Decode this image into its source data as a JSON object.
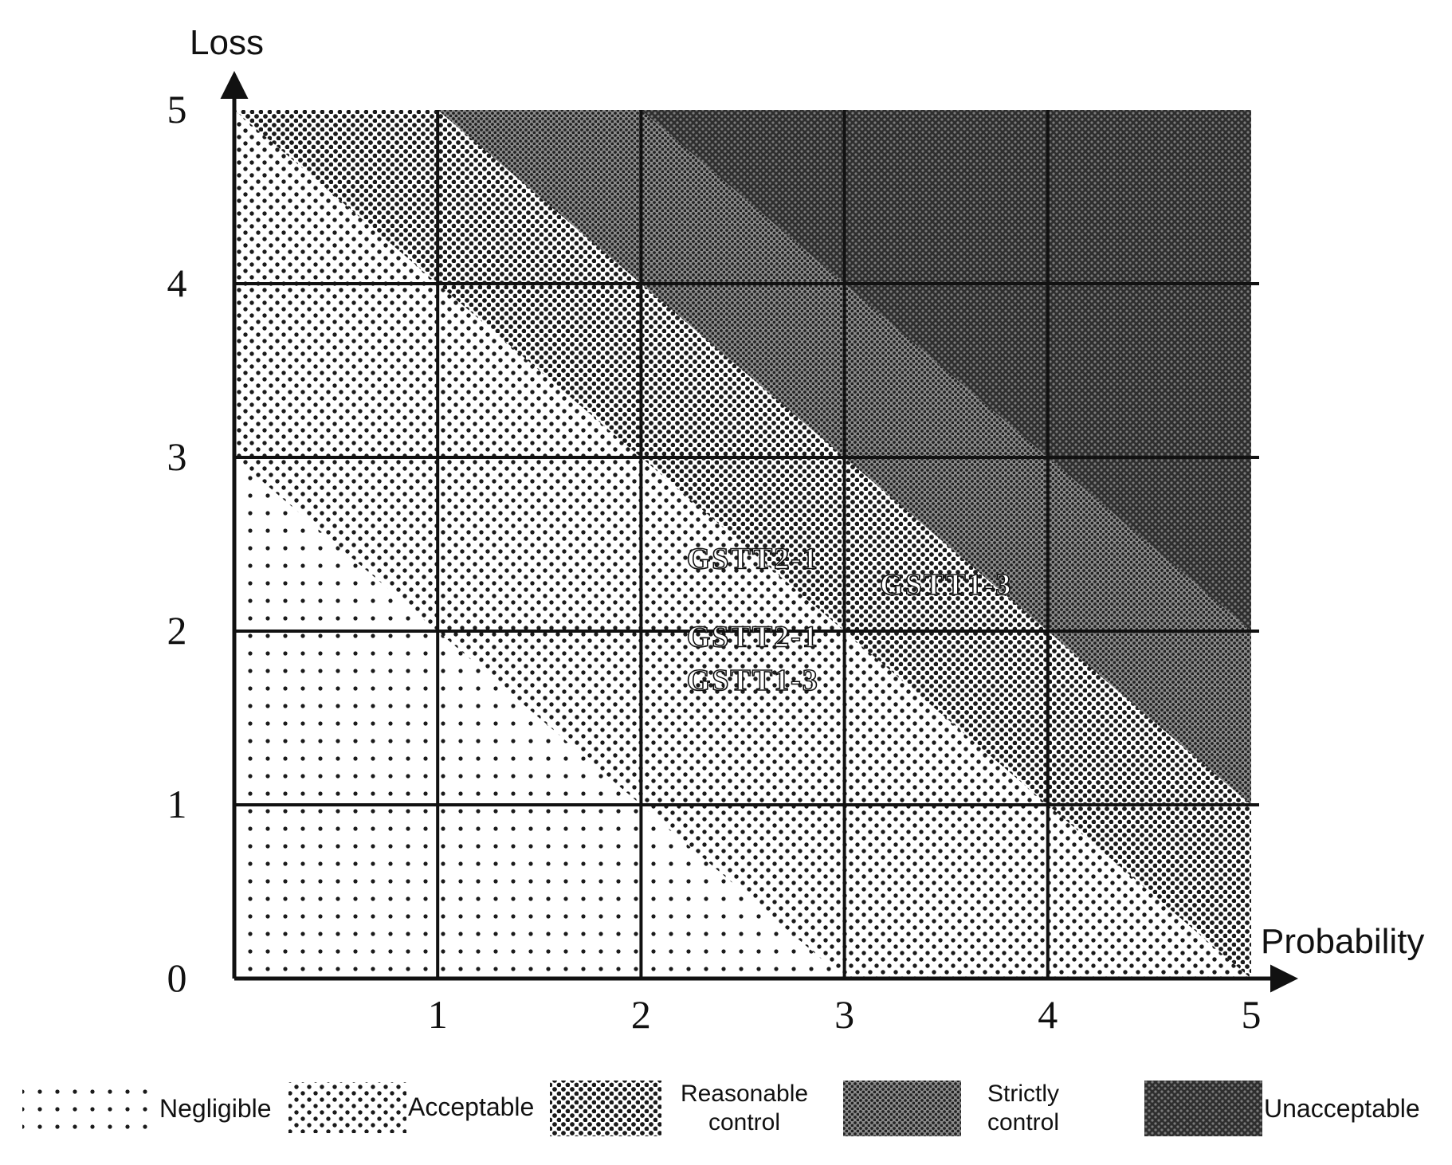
{
  "chart_data": {
    "type": "heatmap",
    "title": "",
    "xlabel": "Probability",
    "ylabel": "Loss",
    "xlim": [
      0,
      5
    ],
    "ylim": [
      0,
      5
    ],
    "x_ticks": [
      "1",
      "2",
      "3",
      "4",
      "5"
    ],
    "y_ticks": [
      "0",
      "1",
      "2",
      "3",
      "4",
      "5"
    ],
    "grid": true,
    "zones": [
      {
        "name": "Negligible",
        "label": "Negligible",
        "sum_min": 0,
        "sum_max": 3,
        "color": "#ffffff",
        "dot_color": "#1a1a1a",
        "density": "sparse"
      },
      {
        "name": "Acceptable",
        "label": "Acceptable",
        "sum_min": 3,
        "sum_max": 5,
        "color": "#ffffff",
        "dot_color": "#1a1a1a",
        "density": "medium"
      },
      {
        "name": "Reasonable control",
        "label_lines": [
          "Reasonable",
          "control"
        ],
        "sum_min": 5,
        "sum_max": 6,
        "color": "#ffffff",
        "dot_color": "#1a1a1a",
        "density": "dense"
      },
      {
        "name": "Strictly control",
        "label_lines": [
          "Strictly",
          "control"
        ],
        "sum_min": 6,
        "sum_max": 7,
        "color": "#8a8a8a",
        "dot_color": "#1a1a1a",
        "density": "very-dense"
      },
      {
        "name": "Unacceptable",
        "label": "Unacceptable",
        "sum_min": 7,
        "sum_max": 10,
        "color": "#3a3a3a",
        "dot_color": "#0a0a0a",
        "density": "darkest"
      }
    ],
    "annotations": [
      {
        "text": "GSTT2-1",
        "x": 2.55,
        "y": 2.4
      },
      {
        "text": "GSTT1-3",
        "x": 3.5,
        "y": 2.25
      },
      {
        "text": "GSTT2-1",
        "x": 2.55,
        "y": 1.95
      },
      {
        "text": "GSTT1-3",
        "x": 2.55,
        "y": 1.7
      }
    ],
    "legend_position": "bottom"
  }
}
